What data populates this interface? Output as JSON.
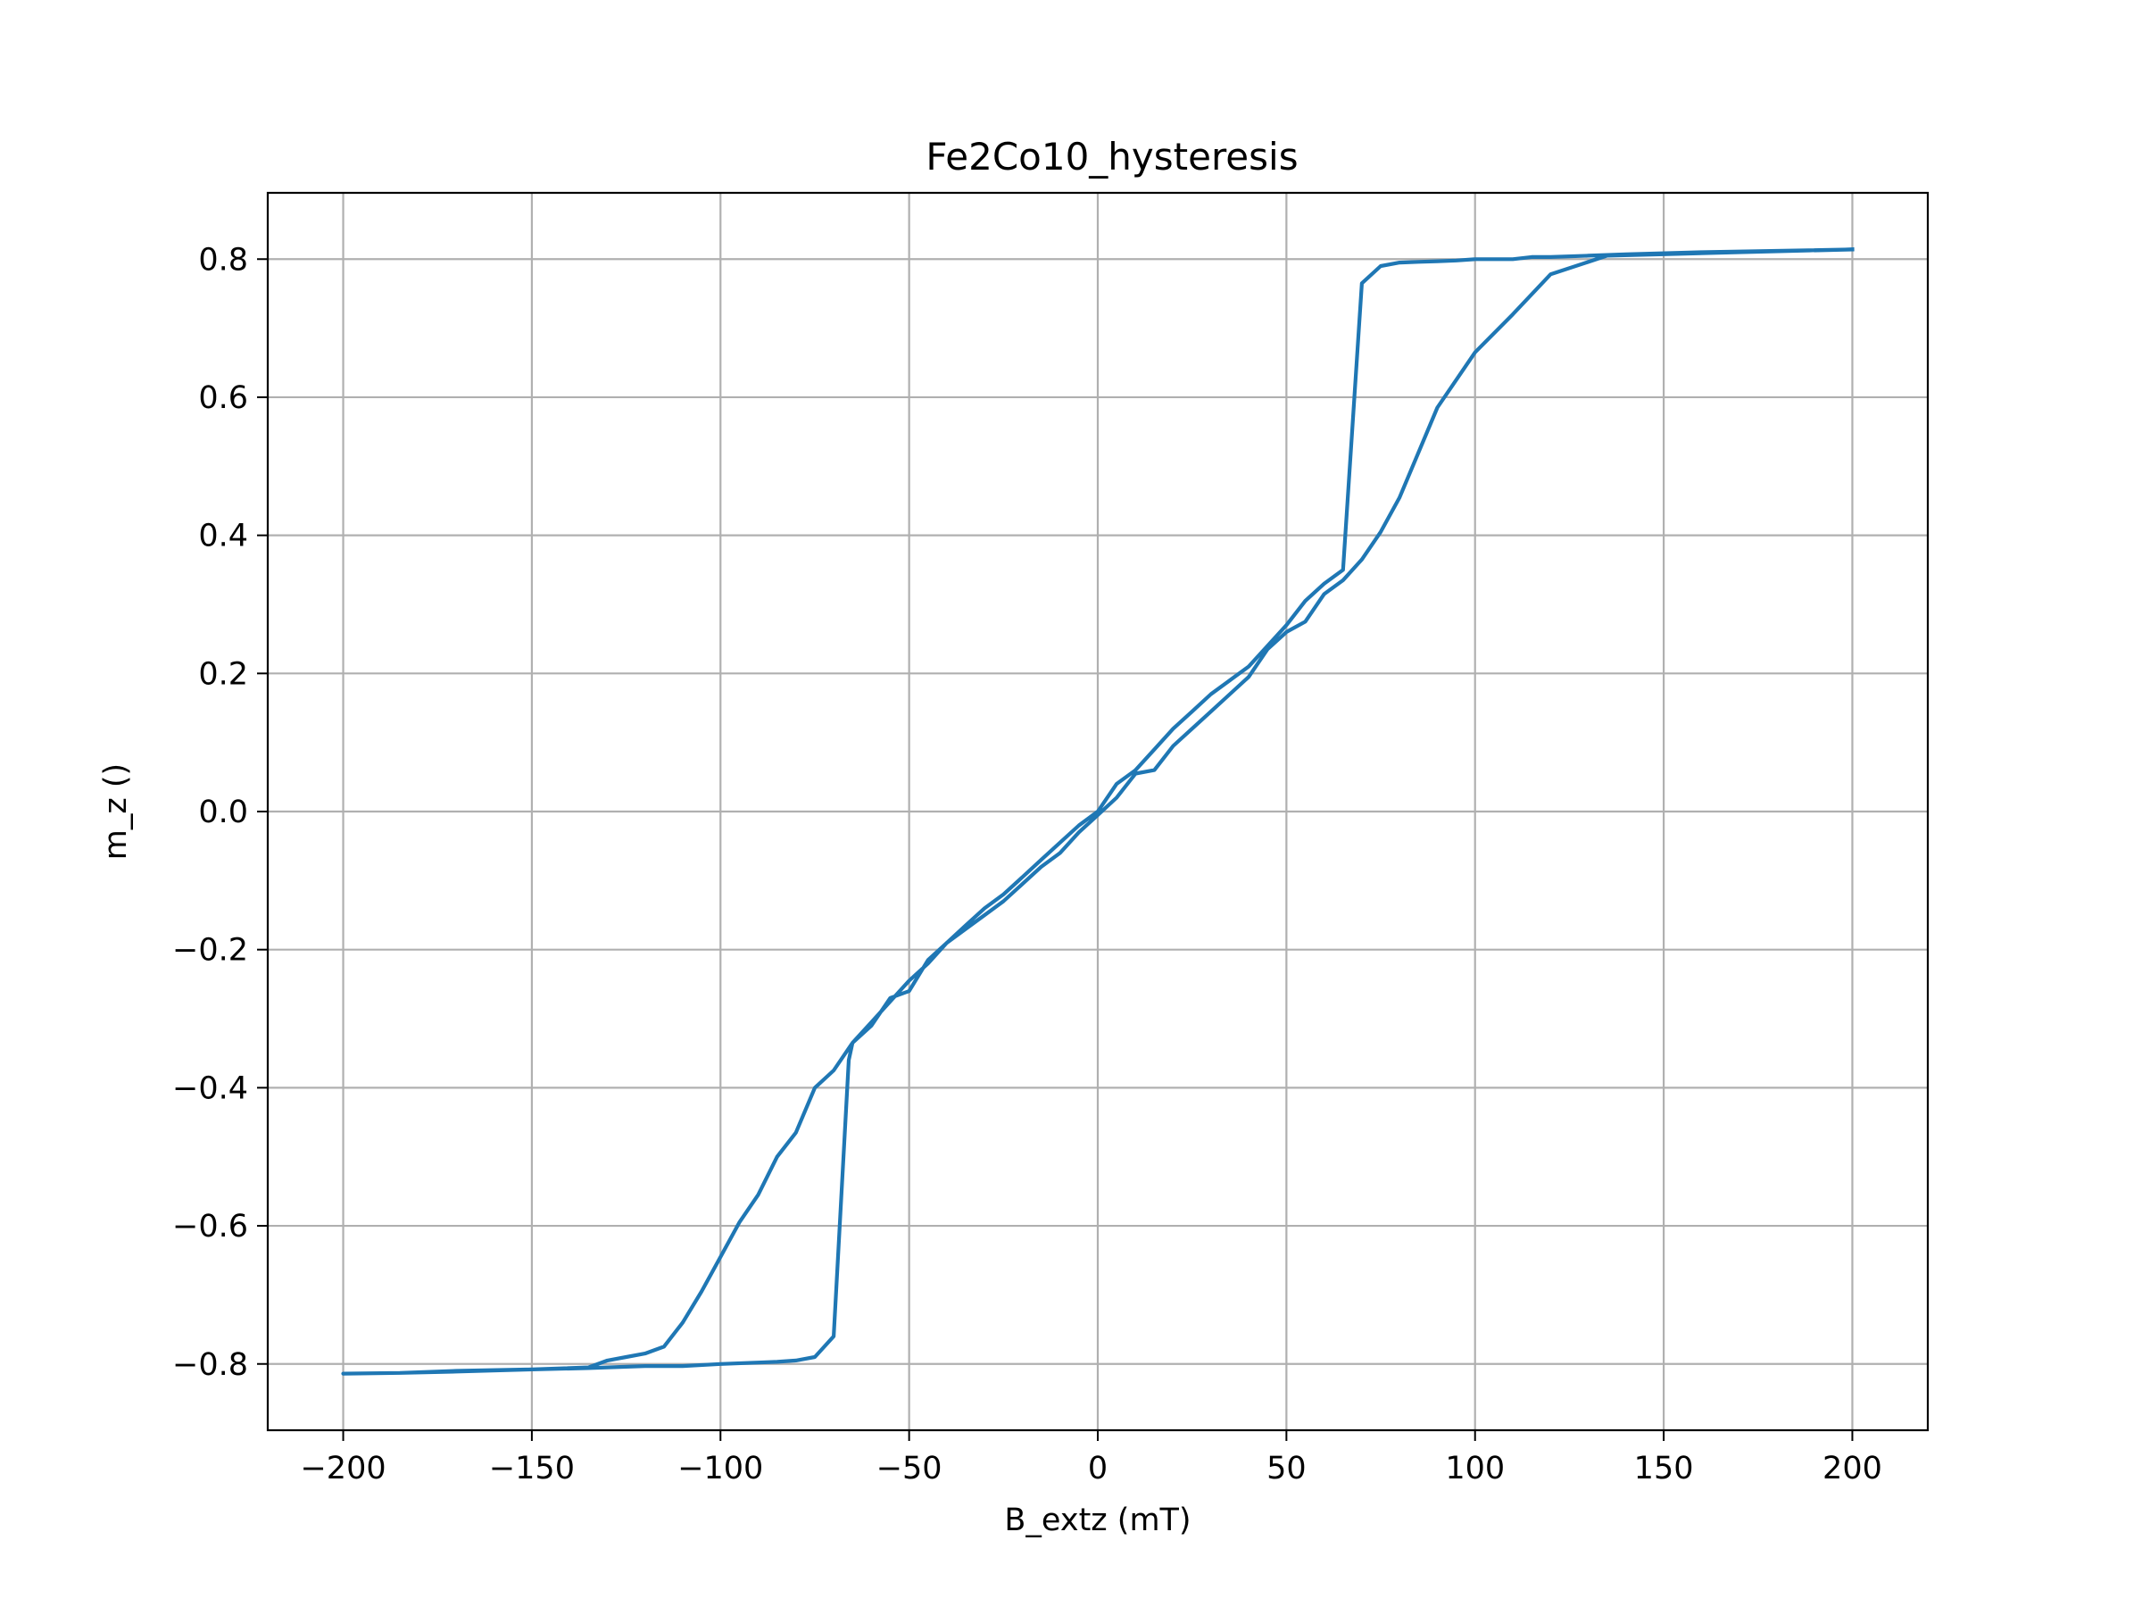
{
  "chart_data": {
    "type": "line",
    "title": "Fe2Co10_hysteresis",
    "xlabel": "B_extz (mT)",
    "ylabel": "m_z ()",
    "xlim": [
      -220,
      220
    ],
    "ylim": [
      -0.896,
      0.896
    ],
    "xticks": [
      -200,
      -150,
      -100,
      -50,
      0,
      50,
      100,
      150,
      200
    ],
    "xtick_labels": [
      "−200",
      "−150",
      "−100",
      "−50",
      "0",
      "50",
      "100",
      "150",
      "200"
    ],
    "yticks": [
      0.8,
      0.6,
      0.4,
      0.2,
      0.0,
      -0.2,
      -0.4,
      -0.6,
      -0.8
    ],
    "ytick_labels": [
      "0.8",
      "0.6",
      "0.4",
      "0.2",
      "0.0",
      "−0.2",
      "−0.4",
      "−0.6",
      "−0.8"
    ],
    "grid": true,
    "series": [
      {
        "color": "#1f77b4",
        "x": [
          200,
          180,
          160,
          140,
          130,
          120,
          115,
          110,
          105,
          100,
          95,
          90,
          85,
          80,
          75,
          70,
          65,
          60,
          55,
          50,
          45,
          40,
          35,
          30,
          25,
          20,
          15,
          10,
          5,
          0,
          -5,
          -10,
          -15,
          -20,
          -25,
          -30,
          -35,
          -40,
          -45,
          -50,
          -55,
          -60,
          -65,
          -66,
          -70,
          -75,
          -80,
          -85,
          -90,
          -100,
          -110,
          -120,
          -130,
          -135,
          -150,
          -170,
          -185,
          -200,
          -185,
          -170,
          -150,
          -135,
          -130,
          -125,
          -120,
          -115,
          -110,
          -105,
          -100,
          -95,
          -90,
          -85,
          -80,
          -75,
          -70,
          -65,
          -60,
          -55,
          -50,
          -45,
          -40,
          -35,
          -30,
          -25,
          -20,
          -15,
          -10,
          -5,
          0,
          5,
          10,
          15,
          20,
          25,
          30,
          35,
          40,
          45,
          50,
          55,
          60,
          65,
          70,
          75,
          80,
          90,
          100,
          110,
          120,
          135,
          150,
          170,
          200
        ],
        "y": [
          0.814,
          0.812,
          0.81,
          0.807,
          0.805,
          0.803,
          0.803,
          0.8,
          0.8,
          0.8,
          0.798,
          0.797,
          0.796,
          0.795,
          0.79,
          0.765,
          0.35,
          0.33,
          0.305,
          0.27,
          0.24,
          0.21,
          0.19,
          0.17,
          0.145,
          0.12,
          0.09,
          0.06,
          0.04,
          0.0,
          -0.02,
          -0.045,
          -0.07,
          -0.095,
          -0.12,
          -0.14,
          -0.165,
          -0.19,
          -0.215,
          -0.26,
          -0.27,
          -0.31,
          -0.335,
          -0.36,
          -0.76,
          -0.79,
          -0.795,
          -0.797,
          -0.798,
          -0.8,
          -0.803,
          -0.803,
          -0.805,
          -0.806,
          -0.808,
          -0.81,
          -0.813,
          -0.814,
          -0.813,
          -0.811,
          -0.808,
          -0.805,
          -0.795,
          -0.79,
          -0.785,
          -0.775,
          -0.74,
          -0.695,
          -0.645,
          -0.595,
          -0.555,
          -0.5,
          -0.465,
          -0.4,
          -0.375,
          -0.335,
          -0.305,
          -0.275,
          -0.245,
          -0.22,
          -0.19,
          -0.17,
          -0.15,
          -0.13,
          -0.105,
          -0.08,
          -0.06,
          -0.03,
          -0.005,
          0.02,
          0.055,
          0.06,
          0.095,
          0.12,
          0.145,
          0.17,
          0.195,
          0.235,
          0.26,
          0.275,
          0.315,
          0.335,
          0.365,
          0.405,
          0.455,
          0.585,
          0.665,
          0.72,
          0.778,
          0.805,
          0.807,
          0.81,
          0.814
        ]
      }
    ]
  }
}
